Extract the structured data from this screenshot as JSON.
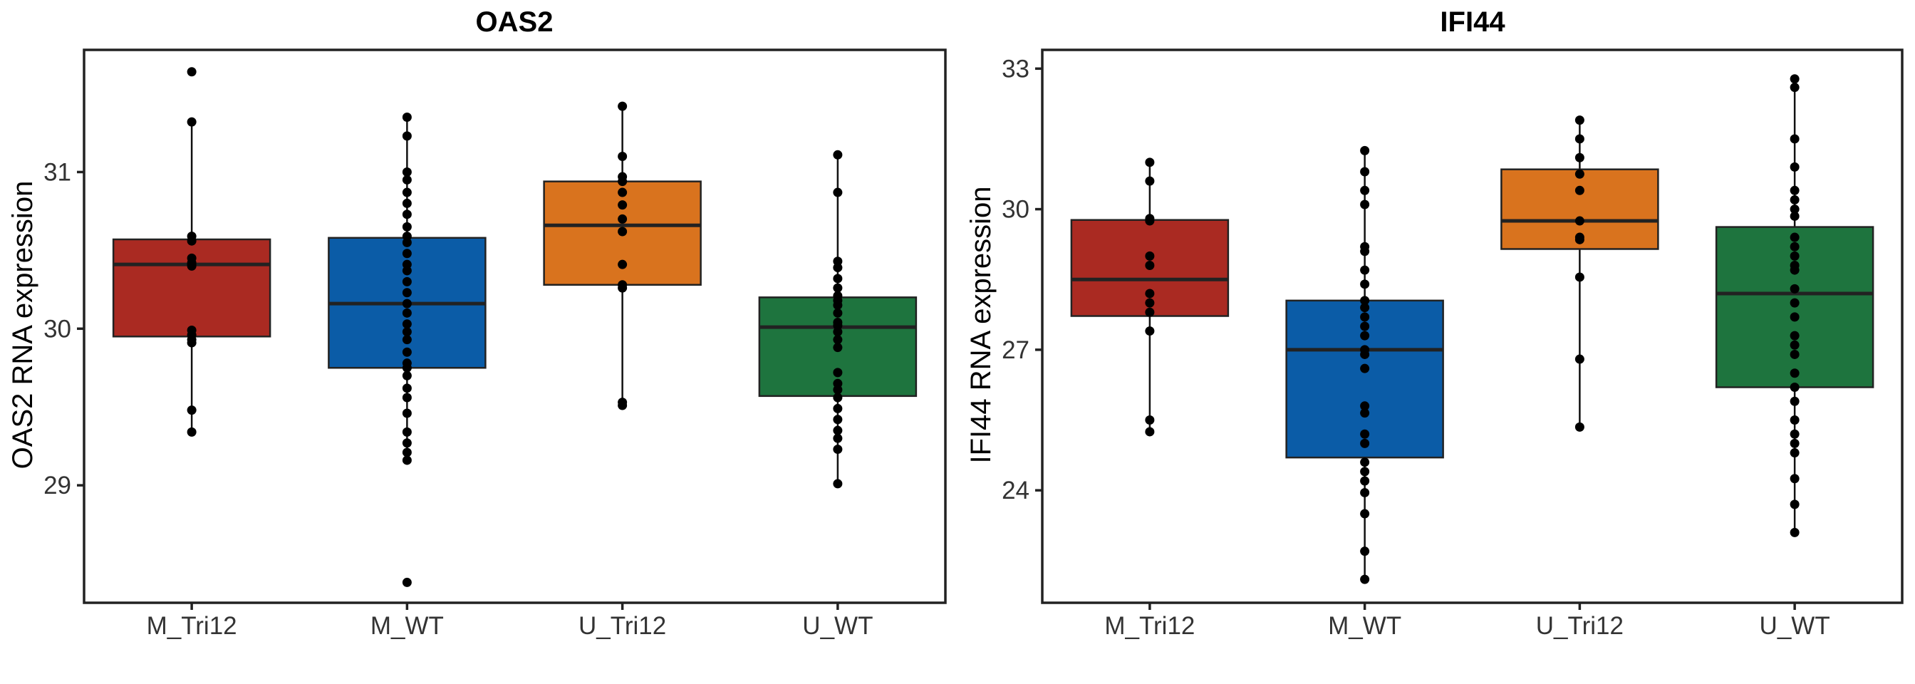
{
  "chart_data": [
    {
      "type": "box",
      "title": "OAS2",
      "xlabel": "",
      "ylabel": "OAS2 RNA expression",
      "ylim": [
        28.25,
        31.78
      ],
      "yticks": [
        29,
        30,
        31
      ],
      "categories": [
        "M_Tri12",
        "M_WT",
        "U_Tri12",
        "U_WT"
      ],
      "boxes": [
        {
          "name": "M_Tri12",
          "color": "#AA2A22",
          "min": 29.34,
          "q1": 29.95,
          "median": 30.41,
          "q3": 30.57,
          "max": 31.32,
          "points": [
            31.64,
            31.32,
            30.59,
            30.56,
            30.45,
            30.42,
            30.41,
            30.4,
            29.99,
            29.96,
            29.93,
            29.91,
            29.48,
            29.34
          ]
        },
        {
          "name": "M_WT",
          "color": "#0B5CA7",
          "min": 29.16,
          "q1": 29.75,
          "median": 30.16,
          "q3": 30.58,
          "max": 31.35,
          "points": [
            31.35,
            31.23,
            31.0,
            30.95,
            30.87,
            30.8,
            30.73,
            30.65,
            30.59,
            30.55,
            30.48,
            30.41,
            30.37,
            30.3,
            30.23,
            30.16,
            30.1,
            30.03,
            29.98,
            29.93,
            29.85,
            29.78,
            29.75,
            29.7,
            29.62,
            29.56,
            29.46,
            29.34,
            29.27,
            29.21,
            29.16,
            28.38
          ]
        },
        {
          "name": "U_Tri12",
          "color": "#D9731E",
          "min": 29.51,
          "q1": 30.28,
          "median": 30.66,
          "q3": 30.94,
          "max": 31.42,
          "points": [
            31.42,
            31.1,
            30.97,
            30.94,
            30.87,
            30.79,
            30.7,
            30.62,
            30.41,
            30.28,
            30.26,
            29.53,
            29.51
          ]
        },
        {
          "name": "U_WT",
          "color": "#1E743E",
          "min": 29.01,
          "q1": 29.57,
          "median": 30.01,
          "q3": 30.2,
          "max": 31.11,
          "points": [
            31.11,
            30.87,
            30.43,
            30.39,
            30.32,
            30.26,
            30.21,
            30.18,
            30.15,
            30.1,
            30.04,
            30.02,
            29.98,
            29.93,
            29.88,
            29.72,
            29.65,
            29.61,
            29.56,
            29.49,
            29.42,
            29.35,
            29.3,
            29.23,
            29.01
          ]
        }
      ]
    },
    {
      "type": "box",
      "title": "IFI44",
      "xlabel": "",
      "ylabel": "IFI44 RNA expression",
      "ylim": [
        21.6,
        33.4
      ],
      "yticks": [
        24,
        27,
        30,
        33
      ],
      "categories": [
        "M_Tri12",
        "M_WT",
        "U_Tri12",
        "U_WT"
      ],
      "boxes": [
        {
          "name": "M_Tri12",
          "color": "#AA2A22",
          "min": 25.25,
          "q1": 27.72,
          "median": 28.5,
          "q3": 29.77,
          "max": 31.0,
          "points": [
            31.0,
            30.6,
            29.8,
            29.75,
            29.0,
            28.8,
            28.2,
            28.0,
            27.8,
            27.4,
            25.5,
            25.25
          ]
        },
        {
          "name": "M_WT",
          "color": "#0B5CA7",
          "min": 22.1,
          "q1": 24.7,
          "median": 27.0,
          "q3": 28.05,
          "max": 31.25,
          "points": [
            31.25,
            30.8,
            30.4,
            30.1,
            29.2,
            29.1,
            28.7,
            28.4,
            28.05,
            27.9,
            27.7,
            27.5,
            27.3,
            27.0,
            26.9,
            26.6,
            25.8,
            25.65,
            25.2,
            25.0,
            24.6,
            24.4,
            24.2,
            23.95,
            23.5,
            22.7,
            22.1
          ]
        },
        {
          "name": "U_Tri12",
          "color": "#D9731E",
          "min": 25.35,
          "q1": 29.15,
          "median": 29.75,
          "q3": 30.85,
          "max": 31.9,
          "points": [
            31.9,
            31.5,
            31.1,
            30.75,
            30.4,
            29.75,
            29.4,
            29.35,
            28.55,
            26.8,
            25.35
          ]
        },
        {
          "name": "U_WT",
          "color": "#1E743E",
          "min": 23.1,
          "q1": 26.2,
          "median": 28.2,
          "q3": 29.62,
          "max": 32.78,
          "points": [
            32.78,
            32.6,
            31.5,
            30.9,
            30.4,
            30.2,
            30.0,
            29.85,
            29.4,
            29.2,
            29.0,
            28.8,
            28.7,
            28.3,
            28.0,
            27.7,
            27.3,
            27.1,
            26.9,
            26.5,
            26.2,
            25.9,
            25.5,
            25.2,
            25.0,
            24.8,
            24.25,
            23.7,
            23.1
          ]
        }
      ]
    }
  ]
}
